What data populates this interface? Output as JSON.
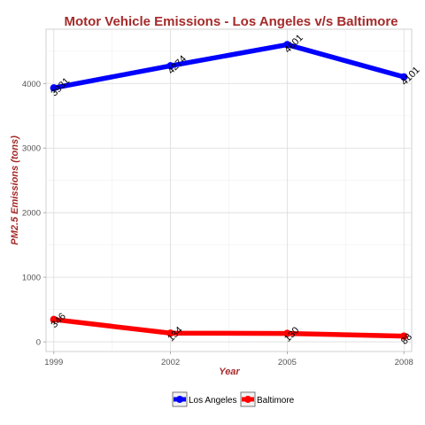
{
  "chart_data": {
    "type": "line",
    "title": "Motor Vehicle Emissions - Los Angeles v/s Baltimore",
    "xlabel": "Year",
    "ylabel": "PM2.5 Emissions (tons)",
    "x": [
      1999,
      2002,
      2005,
      2008
    ],
    "x_tick_labels": [
      "1999",
      "2002",
      "2005",
      "2008"
    ],
    "y_ticks": [
      0,
      1000,
      2000,
      3000,
      4000
    ],
    "y_tick_labels": [
      "0",
      "1000",
      "2000",
      "3000",
      "4000"
    ],
    "xlim": [
      1998.8,
      2008.2
    ],
    "ylim": [
      -150,
      4840
    ],
    "grid": true,
    "legend_position": "bottom",
    "series": [
      {
        "name": "Los Angeles",
        "color": "#0000ff",
        "values": [
          3931,
          4274,
          4601,
          4101
        ],
        "labels": [
          "3931",
          "4274",
          "4601",
          "4101"
        ]
      },
      {
        "name": "Baltimore",
        "color": "#ff0000",
        "values": [
          346,
          134,
          130,
          88
        ],
        "labels": [
          "346",
          "134",
          "130",
          "88"
        ]
      }
    ]
  }
}
